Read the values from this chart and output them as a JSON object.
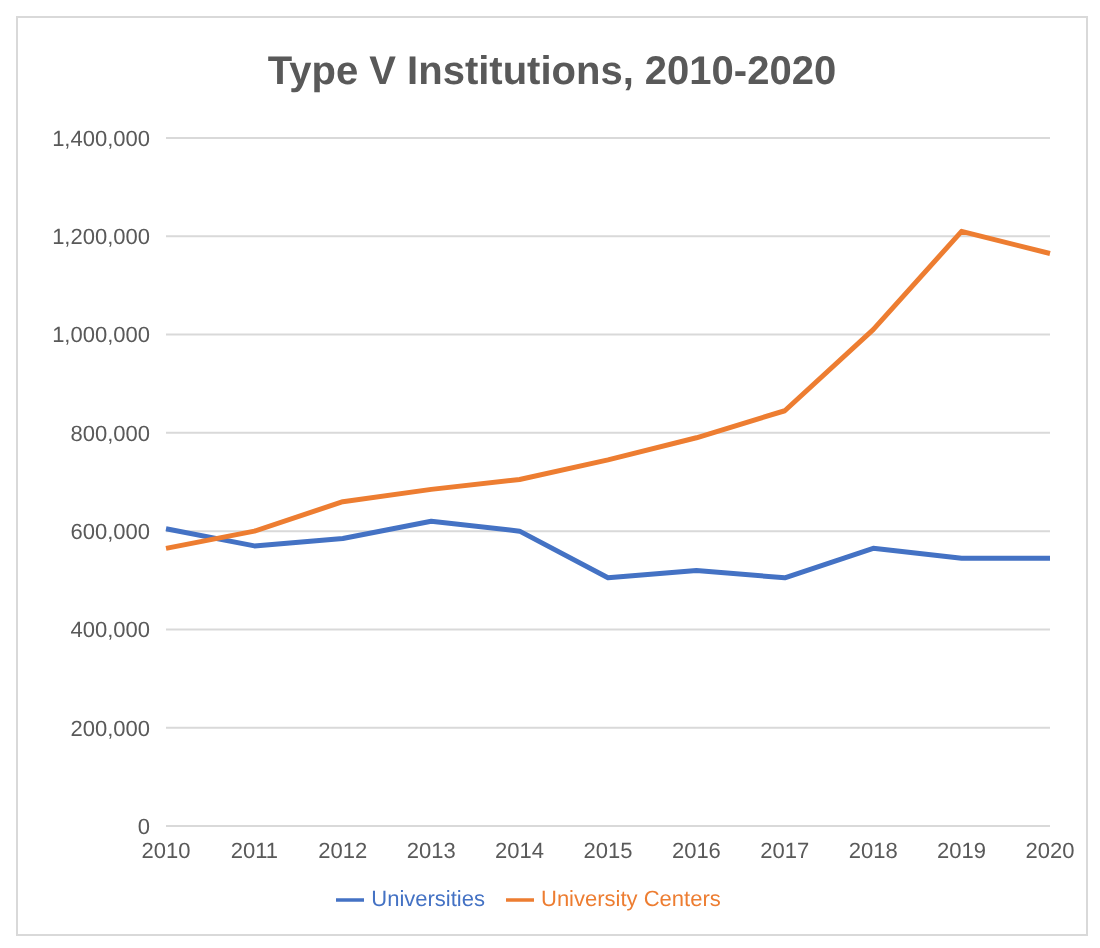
{
  "chart_data": {
    "type": "line",
    "title": "Type V Institutions, 2010-2020",
    "categories": [
      "2010",
      "2011",
      "2012",
      "2013",
      "2014",
      "2015",
      "2016",
      "2017",
      "2018",
      "2019",
      "2020"
    ],
    "series": [
      {
        "name": "Universities",
        "color": "#4472c4",
        "values": [
          605000,
          570000,
          585000,
          620000,
          600000,
          505000,
          520000,
          505000,
          565000,
          545000,
          545000
        ]
      },
      {
        "name": "University Centers",
        "color": "#ed7d31",
        "values": [
          565000,
          600000,
          660000,
          685000,
          705000,
          745000,
          790000,
          845000,
          1010000,
          1210000,
          1165000
        ]
      }
    ],
    "ylim": [
      0,
      1400000
    ],
    "yticks": [
      {
        "value": 0,
        "label": "0"
      },
      {
        "value": 200000,
        "label": "200,000"
      },
      {
        "value": 400000,
        "label": "400,000"
      },
      {
        "value": 600000,
        "label": "600,000"
      },
      {
        "value": 800000,
        "label": "800,000"
      },
      {
        "value": 1000000,
        "label": "1,000,000"
      },
      {
        "value": 1200000,
        "label": "1,200,000"
      },
      {
        "value": 1400000,
        "label": "1,400,000"
      }
    ],
    "grid": "y",
    "legend": "bottom",
    "marker": "none",
    "line_style": "solid"
  }
}
